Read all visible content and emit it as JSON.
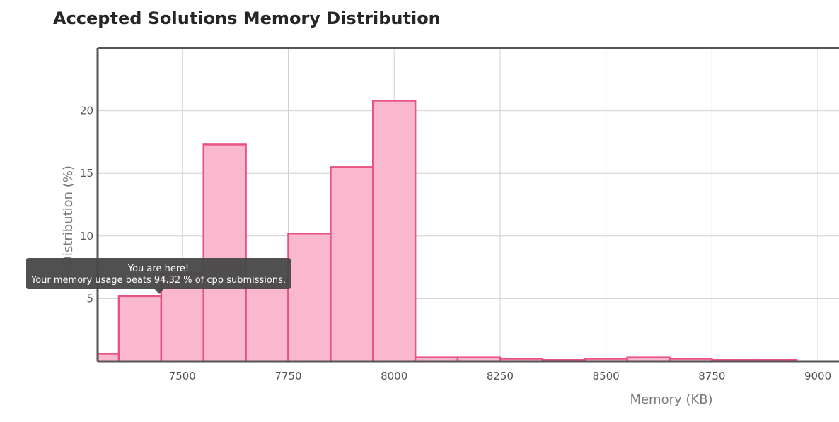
{
  "chart_data": {
    "type": "bar",
    "title": "Accepted Solutions Memory Distribution",
    "xlabel": "Memory (KB)",
    "ylabel": "Distribution (%)",
    "xlim": [
      7300,
      9050
    ],
    "ylim": [
      0,
      25
    ],
    "x_ticks": [
      7500,
      7750,
      8000,
      8250,
      8500,
      8750,
      9000
    ],
    "y_ticks": [
      5,
      10,
      15,
      20
    ],
    "bin_width": 100,
    "bins": [
      {
        "x0": 7250,
        "value": 0.6
      },
      {
        "x0": 7350,
        "value": 5.2
      },
      {
        "x0": 7450,
        "value": 7.0
      },
      {
        "x0": 7550,
        "value": 17.3
      },
      {
        "x0": 7650,
        "value": 6.5
      },
      {
        "x0": 7750,
        "value": 10.2
      },
      {
        "x0": 7850,
        "value": 15.5
      },
      {
        "x0": 7950,
        "value": 20.8
      },
      {
        "x0": 8050,
        "value": 0.3
      },
      {
        "x0": 8150,
        "value": 0.3
      },
      {
        "x0": 8250,
        "value": 0.2
      },
      {
        "x0": 8350,
        "value": 0.1
      },
      {
        "x0": 8450,
        "value": 0.2
      },
      {
        "x0": 8550,
        "value": 0.3
      },
      {
        "x0": 8650,
        "value": 0.2
      },
      {
        "x0": 8750,
        "value": 0.1
      },
      {
        "x0": 8850,
        "value": 0.1
      }
    ],
    "grid": true,
    "colors": {
      "bar_fill": "#f9b8cd",
      "bar_stroke": "#e8527f",
      "grid": "#d0d0d0",
      "axis": "#555555"
    },
    "tooltip": {
      "title": "You are here!",
      "text": "Your memory usage beats 94.32 % of cpp submissions.",
      "anchor_x": 7400,
      "anchor_value": 5.2
    }
  }
}
